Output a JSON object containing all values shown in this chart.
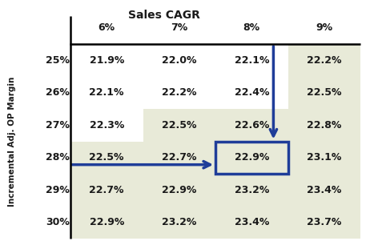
{
  "title": "Sales CAGR",
  "col_header": [
    "6%",
    "7%",
    "8%",
    "9%"
  ],
  "row_header": [
    "25%",
    "26%",
    "27%",
    "28%",
    "29%",
    "30%"
  ],
  "row_label": "Incremental Adj. OP Margin",
  "values": [
    [
      "21.9%",
      "22.0%",
      "22.1%",
      "22.2%"
    ],
    [
      "22.1%",
      "22.2%",
      "22.4%",
      "22.5%"
    ],
    [
      "22.3%",
      "22.5%",
      "22.6%",
      "22.8%"
    ],
    [
      "22.5%",
      "22.7%",
      "22.9%",
      "23.1%"
    ],
    [
      "22.7%",
      "22.9%",
      "23.2%",
      "23.4%"
    ],
    [
      "22.9%",
      "23.2%",
      "23.4%",
      "23.7%"
    ]
  ],
  "highlight_cell": [
    3,
    2
  ],
  "shade_map": [
    [
      false,
      false,
      false,
      true
    ],
    [
      false,
      false,
      false,
      true
    ],
    [
      false,
      true,
      true,
      true
    ],
    [
      true,
      true,
      true,
      true
    ],
    [
      true,
      true,
      true,
      true
    ],
    [
      true,
      true,
      true,
      true
    ]
  ],
  "bg_color_light": "#e8ead8",
  "bg_color_white": "#ffffff",
  "highlight_border_color": "#1f3d99",
  "arrow_color": "#1f3d99",
  "text_color": "#1a1a1a",
  "header_color": "#1a1a1a",
  "figsize": [
    4.57,
    3.01
  ],
  "dpi": 100
}
